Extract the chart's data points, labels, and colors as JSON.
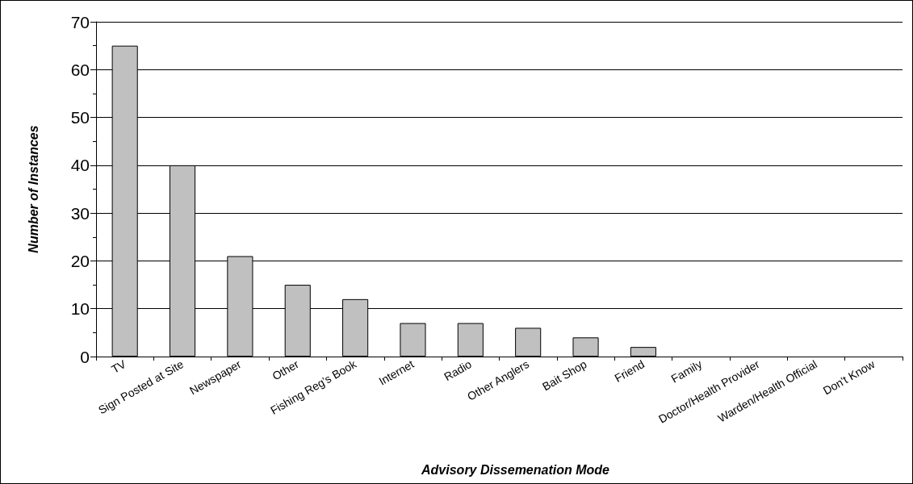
{
  "chart_data": {
    "type": "bar",
    "xlabel": "Advisory Dissemenation Mode",
    "ylabel": "Number of Instances",
    "categories": [
      "TV",
      "Sign Posted at Site",
      "Newspaper",
      "Other",
      "Fishing Reg's Book",
      "Internet",
      "Radio",
      "Other Anglers",
      "Bait Shop",
      "Friend",
      "Family",
      "Doctor/Health Provider",
      "Warden/Health Official",
      "Don't Know"
    ],
    "values": [
      65,
      40,
      21,
      15,
      12,
      7,
      7,
      6,
      4,
      2,
      0,
      0,
      0,
      0
    ],
    "color": "#c0c0c0",
    "ylim": [
      0,
      70
    ],
    "yticks": [
      0,
      10,
      20,
      30,
      40,
      50,
      60,
      70
    ],
    "grid": "y"
  }
}
